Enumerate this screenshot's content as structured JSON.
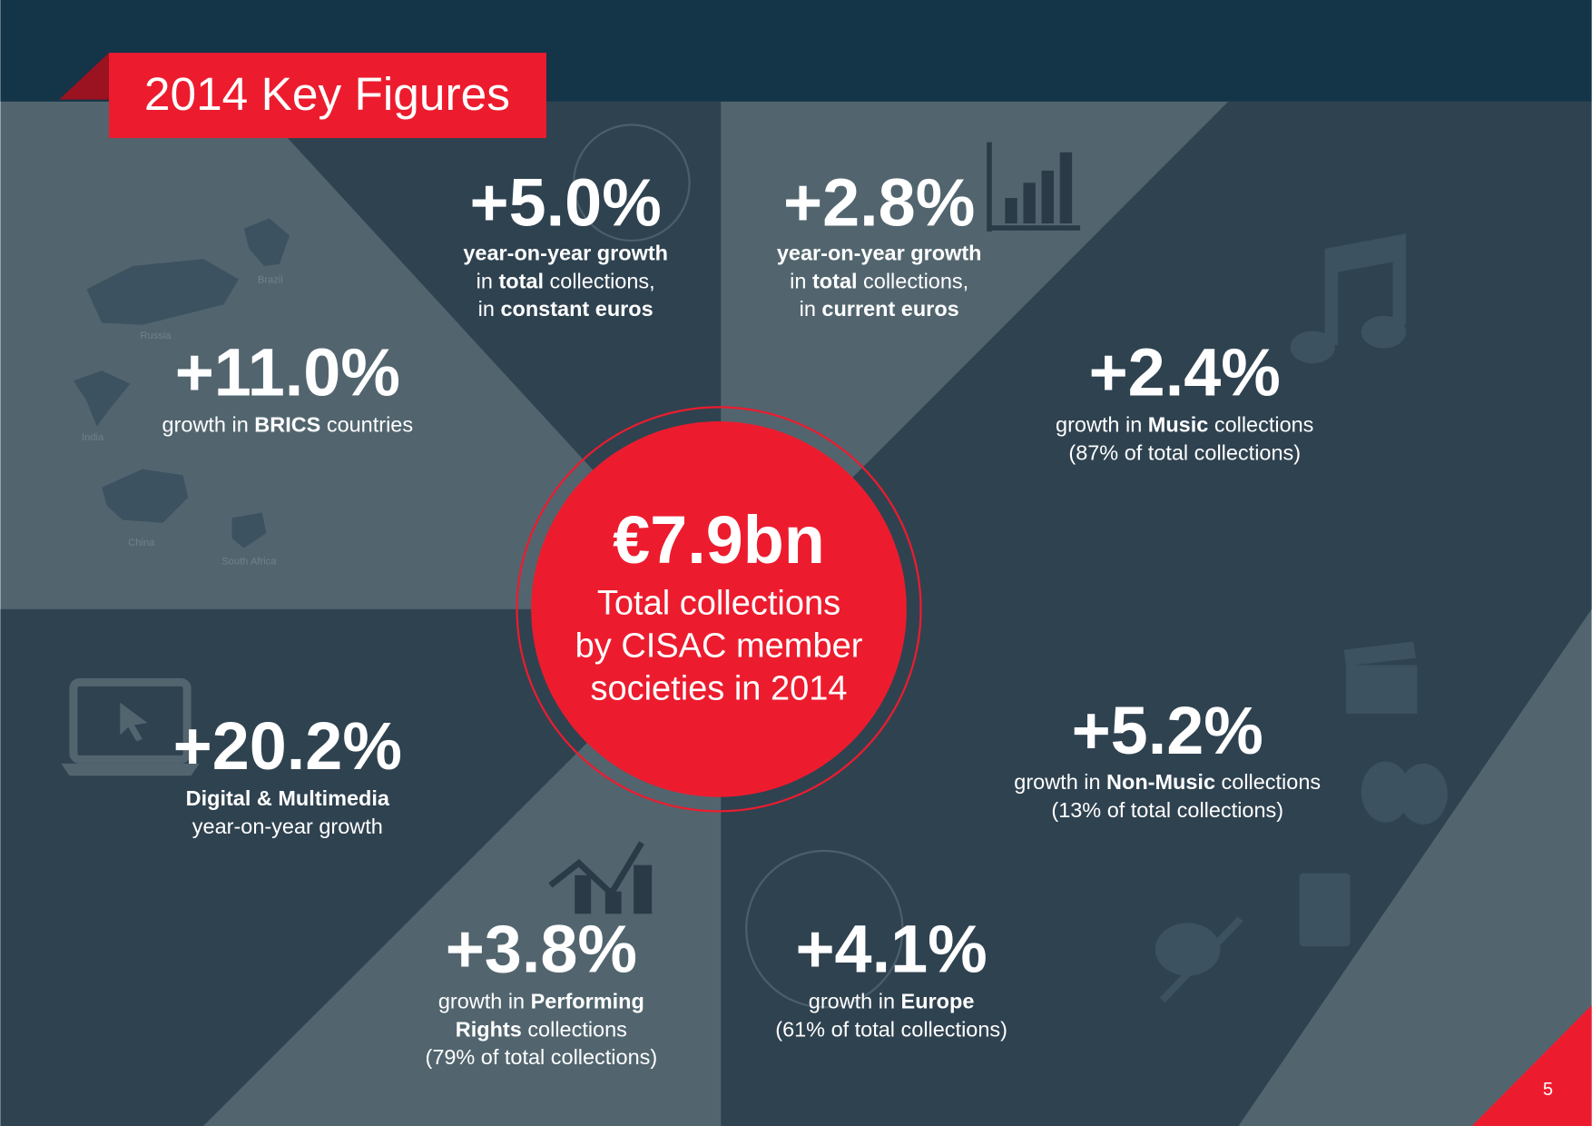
{
  "title": "2014 Key Figures",
  "center": {
    "value": "€7.9bn",
    "lines": [
      "Total collections",
      "by CISAC member",
      "societies in 2014"
    ]
  },
  "map_labels": [
    "Brazil",
    "Russia",
    "India",
    "China",
    "South Africa"
  ],
  "stats": [
    {
      "value": "+5.0%",
      "lines": [
        [
          {
            "text": "year-on-year growth",
            "bold": true
          }
        ],
        [
          {
            "text": "in ",
            "bold": false
          },
          {
            "text": "total",
            "bold": true
          },
          {
            "text": " collections,",
            "bold": false
          }
        ],
        [
          {
            "text": "in ",
            "bold": false
          },
          {
            "text": "constant euros",
            "bold": true
          }
        ]
      ]
    },
    {
      "value": "+2.8%",
      "lines": [
        [
          {
            "text": "year-on-year growth",
            "bold": true
          }
        ],
        [
          {
            "text": "in ",
            "bold": false
          },
          {
            "text": "total",
            "bold": true
          },
          {
            "text": " collections,",
            "bold": false
          }
        ],
        [
          {
            "text": "in ",
            "bold": false
          },
          {
            "text": "current euros",
            "bold": true
          }
        ]
      ]
    },
    {
      "value": "+11.0%",
      "lines": [
        [
          {
            "text": "growth in ",
            "bold": false
          },
          {
            "text": "BRICS",
            "bold": true
          },
          {
            "text": " countries",
            "bold": false
          }
        ]
      ]
    },
    {
      "value": "+2.4%",
      "lines": [
        [
          {
            "text": "growth in ",
            "bold": false
          },
          {
            "text": "Music",
            "bold": true
          },
          {
            "text": " collections",
            "bold": false
          }
        ],
        [
          {
            "text": "(87% of total collections)",
            "bold": false
          }
        ]
      ]
    },
    {
      "value": "+20.2%",
      "lines": [
        [
          {
            "text": "Digital & Multimedia",
            "bold": true
          }
        ],
        [
          {
            "text": "year-on-year growth",
            "bold": false
          }
        ]
      ]
    },
    {
      "value": "+5.2%",
      "lines": [
        [
          {
            "text": "growth in ",
            "bold": false
          },
          {
            "text": "Non-Music",
            "bold": true
          },
          {
            "text": " collections",
            "bold": false
          }
        ],
        [
          {
            "text": "(13% of total collections)",
            "bold": false
          }
        ]
      ]
    },
    {
      "value": "+3.8%",
      "lines": [
        [
          {
            "text": "growth in ",
            "bold": false
          },
          {
            "text": "Performing",
            "bold": true
          }
        ],
        [
          {
            "text": "Rights",
            "bold": true
          },
          {
            "text": " collections",
            "bold": false
          }
        ],
        [
          {
            "text": "(79% of total collections)",
            "bold": false
          }
        ]
      ]
    },
    {
      "value": "+4.1%",
      "lines": [
        [
          {
            "text": "growth in ",
            "bold": false
          },
          {
            "text": "Europe",
            "bold": true
          }
        ],
        [
          {
            "text": "(61% of total collections)",
            "bold": false
          }
        ]
      ]
    }
  ],
  "page_number": "5"
}
